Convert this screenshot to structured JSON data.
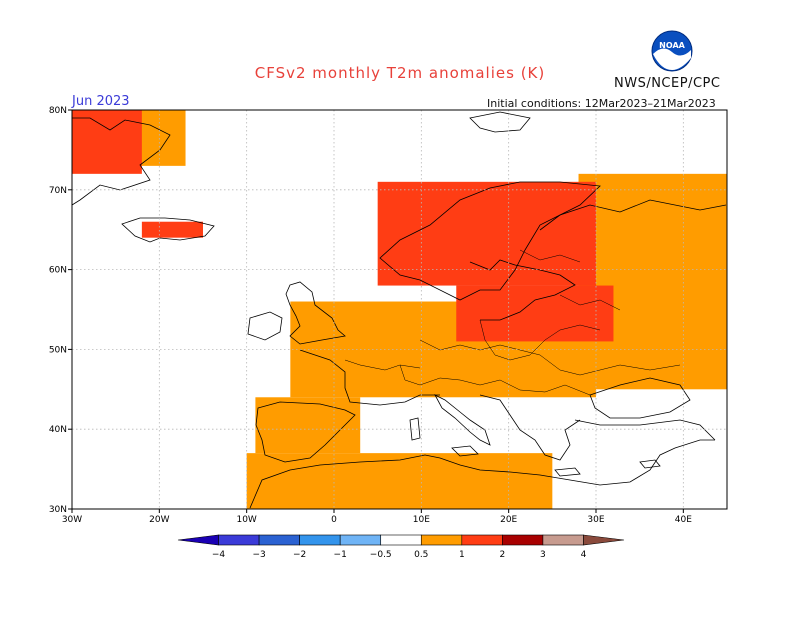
{
  "header": {
    "title": "CFSv2 monthly T2m anomalies (K)",
    "organization": "NWS/NCEP/CPC",
    "valid_month": "Jun 2023",
    "initial_conditions": "Initial conditions: 12Mar2023–21Mar2023"
  },
  "logo": {
    "name": "noaa-logo",
    "text": "NOAA"
  },
  "colors": {
    "title": "#e8413a",
    "valid_month": "#3b3bd8",
    "land_outline": "#000000",
    "ocean": "#ffffff",
    "grid": "#b8b8b8",
    "anomaly_0_5_to_1": "#ff9c00",
    "anomaly_1_to_2": "#ff3d14",
    "anomaly_2_to_3": "#a80000"
  },
  "map": {
    "projection": "cylindrical equidistant",
    "lon_range": [
      -30,
      45
    ],
    "lat_range": [
      30,
      80
    ],
    "x_ticks": [
      {
        "lon": -30,
        "label": "30W"
      },
      {
        "lon": -20,
        "label": "20W"
      },
      {
        "lon": -10,
        "label": "10W"
      },
      {
        "lon": 0,
        "label": "0"
      },
      {
        "lon": 10,
        "label": "10E"
      },
      {
        "lon": 20,
        "label": "20E"
      },
      {
        "lon": 30,
        "label": "30E"
      },
      {
        "lon": 40,
        "label": "40E"
      }
    ],
    "y_ticks": [
      {
        "lat": 30,
        "label": "30N"
      },
      {
        "lat": 40,
        "label": "40N"
      },
      {
        "lat": 50,
        "label": "50N"
      },
      {
        "lat": 60,
        "label": "60N"
      },
      {
        "lat": 70,
        "label": "70N"
      },
      {
        "lat": 80,
        "label": "80N"
      }
    ],
    "grid": "dotted",
    "regions": [
      {
        "name": "greenland-east",
        "class": "1-2",
        "lon": [
          -30,
          -22
        ],
        "lat": [
          72,
          80
        ]
      },
      {
        "name": "greenland-coast",
        "class": "0.5-1",
        "lon": [
          -23,
          -17
        ],
        "lat": [
          73,
          80
        ]
      },
      {
        "name": "iceland",
        "class": "1-2",
        "lon": [
          -22,
          -15
        ],
        "lat": [
          64,
          66
        ]
      },
      {
        "name": "scandinavia",
        "class": "1-2",
        "lon": [
          5,
          30
        ],
        "lat": [
          58,
          71
        ]
      },
      {
        "name": "central-europe",
        "class": "0.5-1",
        "lon": [
          -5,
          30
        ],
        "lat": [
          44,
          56
        ]
      },
      {
        "name": "poland-baltics",
        "class": "1-2",
        "lon": [
          14,
          32
        ],
        "lat": [
          51,
          58
        ]
      },
      {
        "name": "russia-west",
        "class": "0.5-1",
        "lon": [
          28,
          45
        ],
        "lat": [
          45,
          72
        ]
      },
      {
        "name": "iberia",
        "class": "0.5-1",
        "lon": [
          -9,
          3
        ],
        "lat": [
          37,
          44
        ]
      },
      {
        "name": "north-africa",
        "class": "0.5-1",
        "lon": [
          -10,
          25
        ],
        "lat": [
          30,
          37
        ]
      }
    ]
  },
  "legend": {
    "boundaries": [
      "−4",
      "−3",
      "−2",
      "−1",
      "−0.5",
      "0.5",
      "1",
      "2",
      "3",
      "4"
    ],
    "colors": [
      "#1a00b4",
      "#3b3bd8",
      "#2b62d2",
      "#3394ec",
      "#6fb4f6",
      "#ffffff",
      "#ff9c00",
      "#ff3d14",
      "#a80000",
      "#c79b8f",
      "#8a4a3c"
    ]
  }
}
